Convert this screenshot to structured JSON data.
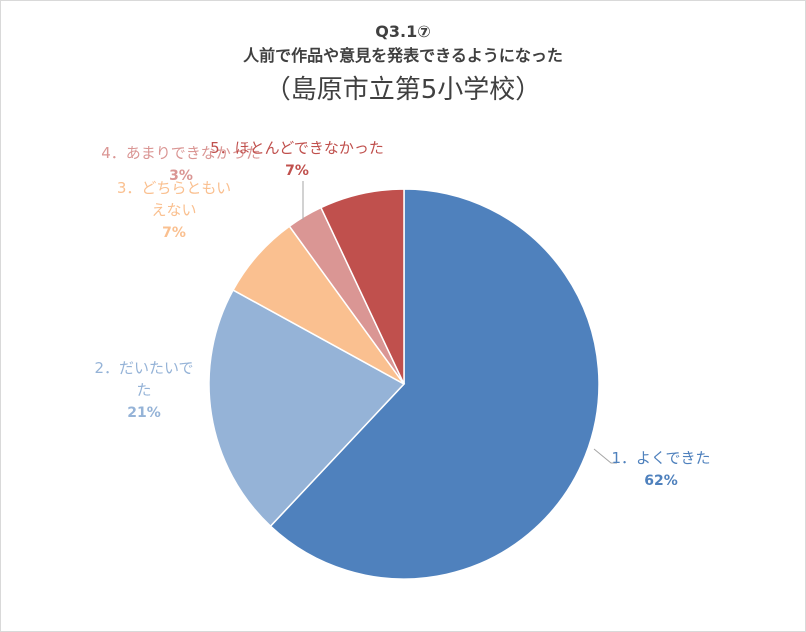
{
  "chart_data": {
    "type": "pie",
    "title_line1": "Q3.1⑦",
    "title_line2": "人前で作品や意見を発表できるようになった",
    "title_line3": "（島原市立第5小学校）",
    "slices": [
      {
        "label_lines": [
          "1．よくできた"
        ],
        "percent_label": "62%",
        "value": 62,
        "color": "#4f81bd",
        "label_color": "#4f81bd"
      },
      {
        "label_lines": [
          "2．だいたいで",
          "た"
        ],
        "percent_label": "21%",
        "value": 21,
        "color": "#95b3d7",
        "label_color": "#95b3d7"
      },
      {
        "label_lines": [
          "3．どちらともい",
          "えない"
        ],
        "percent_label": "7%",
        "value": 7,
        "color": "#fac090",
        "label_color": "#fac090"
      },
      {
        "label_lines": [
          "4．あまりできなかった"
        ],
        "percent_label": "3%",
        "value": 3,
        "color": "#da9694",
        "label_color": "#da9694"
      },
      {
        "label_lines": [
          "5．ほとんどできなかった"
        ],
        "percent_label": "7%",
        "value": 7,
        "color": "#c0504d",
        "label_color": "#c0504d"
      }
    ]
  }
}
